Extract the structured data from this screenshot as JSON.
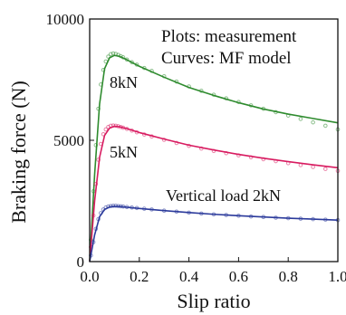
{
  "chart_data": {
    "type": "line",
    "xlabel": "Slip ratio",
    "ylabel": "Braking force (N)",
    "xlim": [
      0.0,
      1.0
    ],
    "ylim": [
      0,
      10000
    ],
    "x_ticks": [
      "0.0",
      "0.2",
      "0.4",
      "0.6",
      "0.8",
      "1.0"
    ],
    "y_ticks": [
      "0",
      "5000",
      "10000"
    ],
    "grid": false,
    "annotations": {
      "plots_text": "Plots: measurement",
      "curves_text": "Curves: MF model"
    },
    "series": [
      {
        "label": "8kN",
        "color": "#2e8b2e",
        "model": {
          "x": [
            0.0,
            0.02,
            0.04,
            0.06,
            0.08,
            0.1,
            0.12,
            0.15,
            0.2,
            0.3,
            0.4,
            0.5,
            0.6,
            0.7,
            0.8,
            0.9,
            1.0
          ],
          "y": [
            0,
            3600,
            6500,
            7950,
            8400,
            8500,
            8460,
            8320,
            8050,
            7600,
            7180,
            6850,
            6550,
            6290,
            6080,
            5900,
            5720
          ]
        },
        "measurement": {
          "x": [
            0.005,
            0.015,
            0.025,
            0.035,
            0.045,
            0.055,
            0.065,
            0.075,
            0.085,
            0.095,
            0.105,
            0.115,
            0.125,
            0.135,
            0.15,
            0.17,
            0.19,
            0.22,
            0.25,
            0.3,
            0.35,
            0.4,
            0.45,
            0.5,
            0.55,
            0.6,
            0.65,
            0.7,
            0.75,
            0.8,
            0.85,
            0.9,
            0.95,
            1.0
          ],
          "y": [
            900,
            2900,
            4800,
            6300,
            7300,
            7900,
            8250,
            8450,
            8550,
            8580,
            8560,
            8520,
            8470,
            8420,
            8330,
            8220,
            8120,
            7980,
            7860,
            7640,
            7420,
            7220,
            7040,
            6880,
            6730,
            6580,
            6440,
            6300,
            6160,
            6020,
            5880,
            5740,
            5600,
            5450
          ]
        }
      },
      {
        "label": "5kN",
        "color": "#d81b60",
        "model": {
          "x": [
            0.0,
            0.02,
            0.04,
            0.06,
            0.08,
            0.1,
            0.12,
            0.15,
            0.2,
            0.3,
            0.4,
            0.5,
            0.6,
            0.7,
            0.8,
            0.9,
            1.0
          ],
          "y": [
            0,
            2500,
            4300,
            5200,
            5500,
            5580,
            5560,
            5480,
            5320,
            5050,
            4800,
            4600,
            4420,
            4260,
            4120,
            3990,
            3870
          ]
        },
        "measurement": {
          "x": [
            0.005,
            0.015,
            0.025,
            0.035,
            0.045,
            0.055,
            0.065,
            0.075,
            0.085,
            0.095,
            0.105,
            0.115,
            0.125,
            0.135,
            0.15,
            0.17,
            0.19,
            0.22,
            0.25,
            0.3,
            0.35,
            0.4,
            0.45,
            0.5,
            0.55,
            0.6,
            0.65,
            0.7,
            0.75,
            0.8,
            0.85,
            0.9,
            0.95,
            1.0
          ],
          "y": [
            600,
            1900,
            3200,
            4200,
            4850,
            5250,
            5450,
            5550,
            5600,
            5610,
            5600,
            5580,
            5550,
            5520,
            5470,
            5400,
            5330,
            5240,
            5160,
            5020,
            4890,
            4770,
            4660,
            4560,
            4470,
            4380,
            4300,
            4220,
            4140,
            4060,
            3980,
            3900,
            3820,
            3740
          ]
        }
      },
      {
        "label": "Vertical load 2kN",
        "color": "#2b3a9b",
        "model": {
          "x": [
            0.0,
            0.02,
            0.04,
            0.06,
            0.08,
            0.1,
            0.12,
            0.15,
            0.2,
            0.3,
            0.4,
            0.5,
            0.6,
            0.7,
            0.8,
            0.9,
            1.0
          ],
          "y": [
            0,
            1100,
            1850,
            2150,
            2250,
            2280,
            2270,
            2240,
            2190,
            2100,
            2020,
            1950,
            1890,
            1840,
            1790,
            1750,
            1710
          ]
        },
        "measurement": {
          "x": [
            0.005,
            0.015,
            0.025,
            0.035,
            0.045,
            0.055,
            0.065,
            0.075,
            0.085,
            0.095,
            0.105,
            0.115,
            0.125,
            0.135,
            0.15,
            0.17,
            0.19,
            0.22,
            0.25,
            0.3,
            0.35,
            0.4,
            0.45,
            0.5,
            0.55,
            0.6,
            0.65,
            0.7,
            0.75,
            0.8,
            0.85,
            0.9,
            0.95,
            1.0
          ],
          "y": [
            250,
            800,
            1350,
            1750,
            2000,
            2150,
            2230,
            2270,
            2290,
            2300,
            2300,
            2290,
            2280,
            2270,
            2250,
            2230,
            2210,
            2180,
            2150,
            2100,
            2060,
            2020,
            1980,
            1950,
            1920,
            1890,
            1860,
            1840,
            1810,
            1790,
            1770,
            1750,
            1730,
            1710
          ]
        }
      }
    ]
  }
}
